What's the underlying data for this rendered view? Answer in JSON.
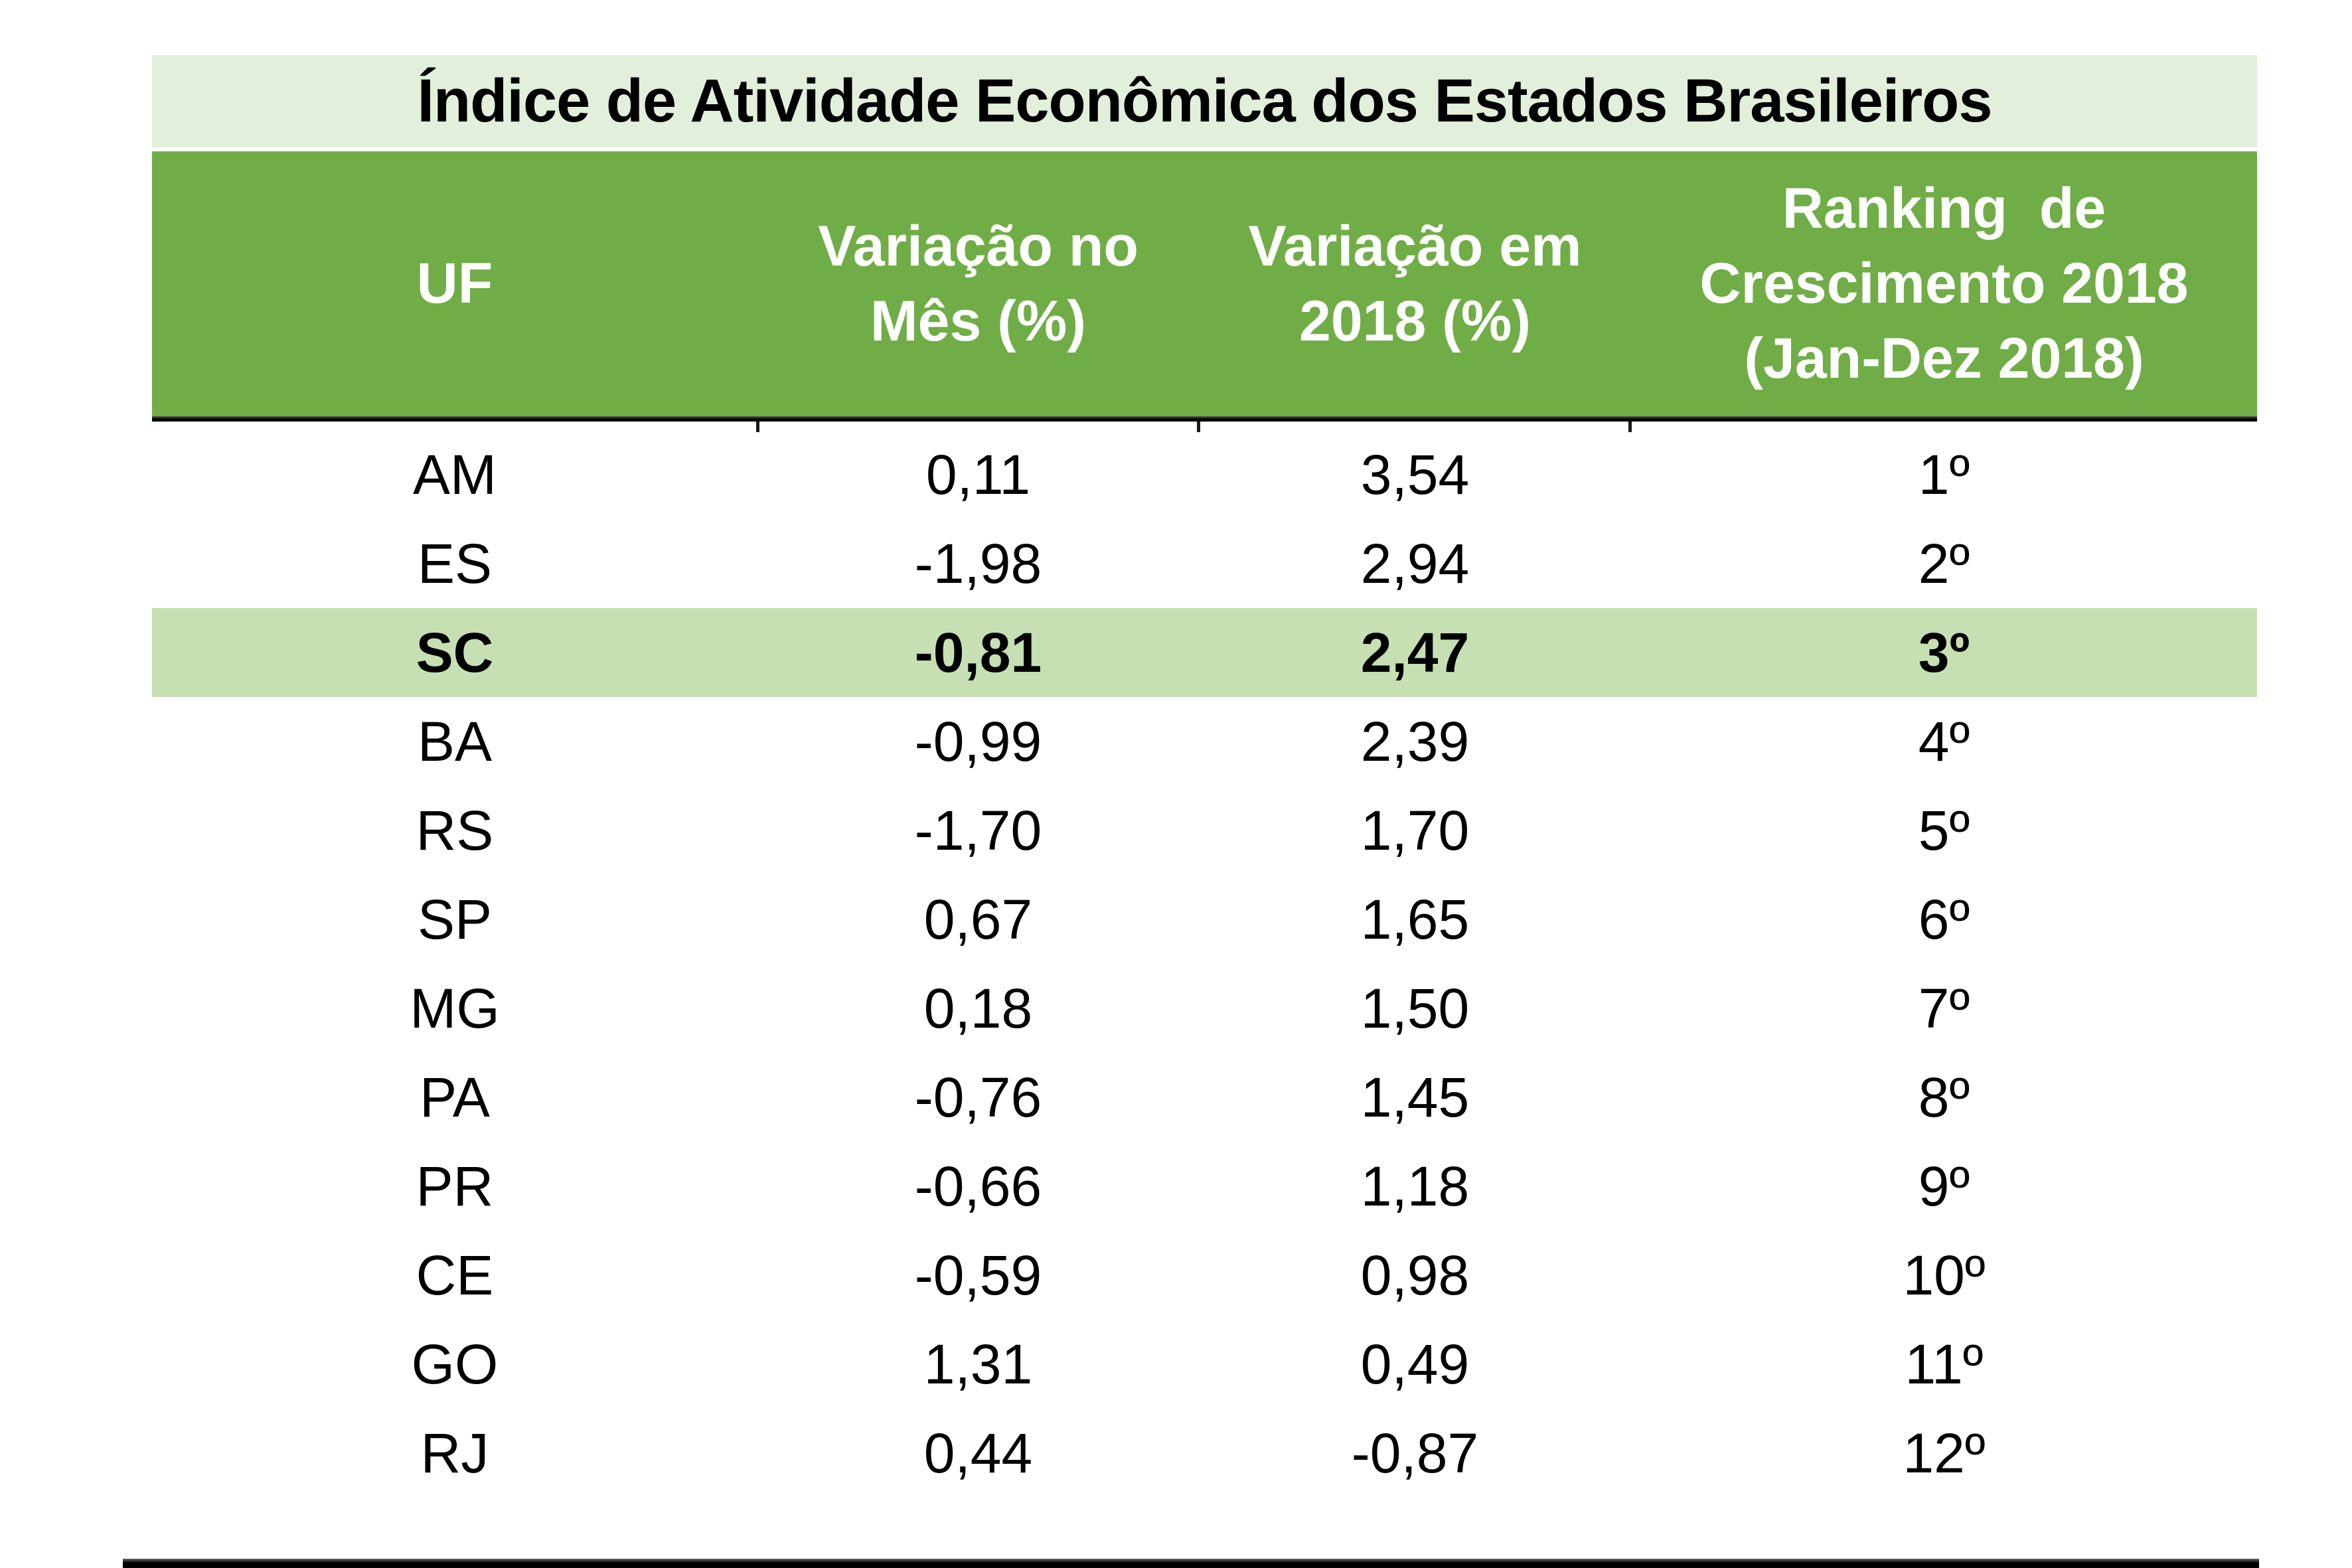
{
  "title": "Índice de Atividade Econômica dos Estados Brasileiros",
  "header": {
    "columns": [
      "UF",
      "Variação no\nMês (%)",
      "Variação em\n2018 (%)",
      "Ranking  de\nCrescimento 2018\n(Jan-Dez 2018)"
    ]
  },
  "rows": [
    {
      "uf": "AM",
      "var_mes": "0,11",
      "var_2018": "3,54",
      "ranking": "1º",
      "highlighted": false
    },
    {
      "uf": "ES",
      "var_mes": "-1,98",
      "var_2018": "2,94",
      "ranking": "2º",
      "highlighted": false
    },
    {
      "uf": "SC",
      "var_mes": "-0,81",
      "var_2018": "2,47",
      "ranking": "3º",
      "highlighted": true
    },
    {
      "uf": "BA",
      "var_mes": "-0,99",
      "var_2018": "2,39",
      "ranking": "4º",
      "highlighted": false
    },
    {
      "uf": "RS",
      "var_mes": "-1,70",
      "var_2018": "1,70",
      "ranking": "5º",
      "highlighted": false
    },
    {
      "uf": "SP",
      "var_mes": "0,67",
      "var_2018": "1,65",
      "ranking": "6º",
      "highlighted": false
    },
    {
      "uf": "MG",
      "var_mes": "0,18",
      "var_2018": "1,50",
      "ranking": "7º",
      "highlighted": false
    },
    {
      "uf": "PA",
      "var_mes": "-0,76",
      "var_2018": "1,45",
      "ranking": "8º",
      "highlighted": false
    },
    {
      "uf": "PR",
      "var_mes": "-0,66",
      "var_2018": "1,18",
      "ranking": "9º",
      "highlighted": false
    },
    {
      "uf": "CE",
      "var_mes": "-0,59",
      "var_2018": "0,98",
      "ranking": "10º",
      "highlighted": false
    },
    {
      "uf": "GO",
      "var_mes": "1,31",
      "var_2018": "0,49",
      "ranking": "11º",
      "highlighted": false
    },
    {
      "uf": "RJ",
      "var_mes": "0,44",
      "var_2018": "-0,87",
      "ranking": "12º",
      "highlighted": false
    }
  ],
  "colors": {
    "title_bg": "#E2EFDA",
    "header_bg": "#70AD47",
    "highlight_bg": "#C6E0B4",
    "header_text": "#FFFFFF",
    "text": "#000000"
  }
}
